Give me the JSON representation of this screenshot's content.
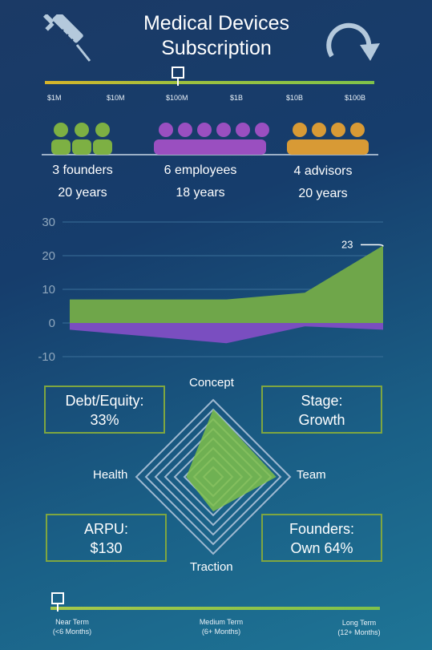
{
  "title_line1": "Medical Devices",
  "title_line2": "Subscription",
  "icons": {
    "left": "syringe-icon",
    "right": "refresh-arrow-icon"
  },
  "scale": {
    "labels": [
      "$1M",
      "$10M",
      "$100M",
      "$1B",
      "$10B",
      "$100B"
    ],
    "marker_position_fraction": 0.41
  },
  "people": [
    {
      "label": "3 founders",
      "years": "20 years",
      "color": "#7db043",
      "count": 3
    },
    {
      "label": "6 employees",
      "years": "18 years",
      "color": "#9a4fc0",
      "count": 6
    },
    {
      "label": "4 advisors",
      "years": "20 years",
      "color": "#d89a35",
      "count": 4
    }
  ],
  "chart_data": {
    "type": "area",
    "y_ticks": [
      "30",
      "20",
      "10",
      "0",
      "-10"
    ],
    "ylim": [
      -10,
      30
    ],
    "grid": true,
    "x": [
      0,
      1,
      2,
      3,
      4
    ],
    "series": [
      {
        "values": [
          7,
          7,
          7,
          9,
          23
        ],
        "color": "#6fa64a"
      },
      {
        "values": [
          -2,
          -4,
          -6,
          -1,
          -2
        ],
        "color": "#7a4ec0"
      }
    ],
    "annotation": "23"
  },
  "metrics": {
    "debt_label": "Debt/Equity:",
    "debt_value": "33%",
    "stage_label": "Stage:",
    "stage_value": "Growth",
    "arpu_label": "ARPU:",
    "arpu_value": "$130",
    "founders_label": "Founders:",
    "founders_value": "Own 64%"
  },
  "radar": {
    "axes": [
      "Concept",
      "Team",
      "Traction",
      "Health"
    ],
    "values": [
      0.88,
      0.82,
      0.45,
      0.35
    ],
    "fill_color": "#7fbf4a"
  },
  "timeline": {
    "near": "Near Term",
    "near_sub": "(<6 Months)",
    "medium": "Medium Term",
    "medium_sub": "(6+ Months)",
    "long": "Long Term",
    "long_sub": "(12+ Months)",
    "marker_position_fraction": 0.0
  }
}
